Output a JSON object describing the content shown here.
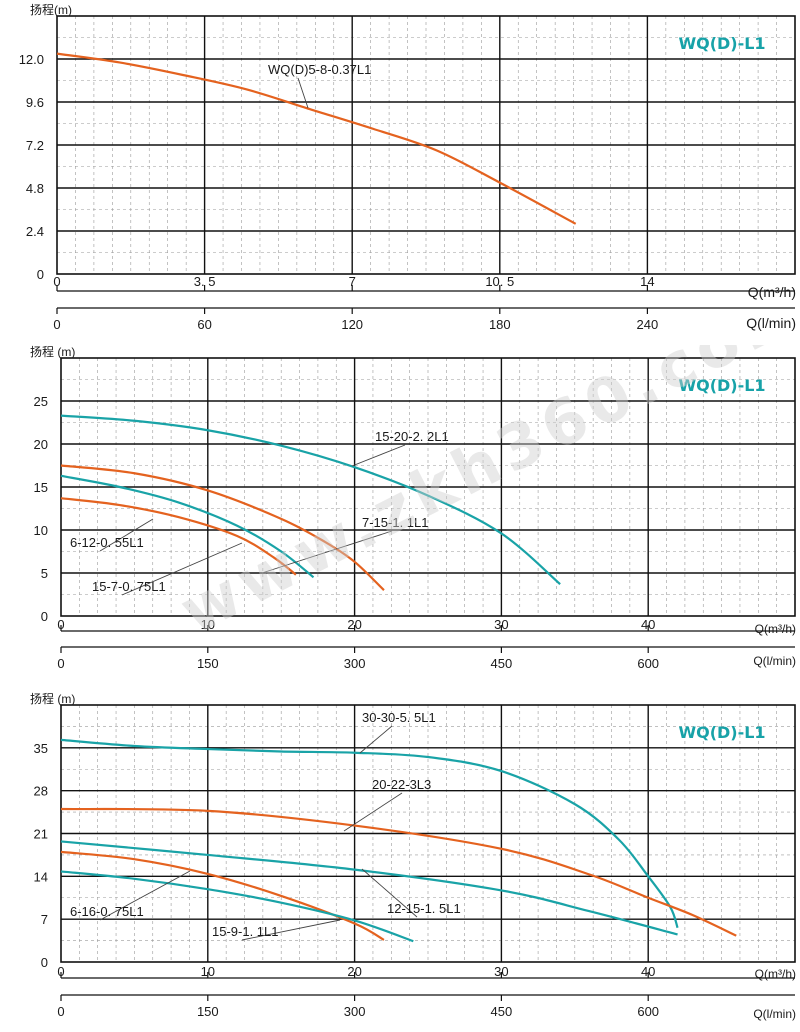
{
  "chart_data": [
    {
      "type": "line",
      "title": "WQ(D)-L1",
      "ylabel": "扬程(m)",
      "xlabel": "Q(m³/h)",
      "x2label": "Q(l/min)",
      "xlim": [
        0,
        17.5
      ],
      "ylim": [
        0,
        14.4
      ],
      "x_ticks": [
        "0",
        "3. 5",
        "7",
        "10. 5",
        "14"
      ],
      "x_tick_values": [
        0,
        3.5,
        7,
        10.5,
        14
      ],
      "x2_ticks": [
        "0",
        "60",
        "120",
        "180",
        "240"
      ],
      "y_ticks": [
        "0",
        "2.4",
        "4.8",
        "7.2",
        "9.6",
        "12.0"
      ],
      "grid": true,
      "series": [
        {
          "name": "WQ(D)5-8-0.37L1",
          "color": "#e4621f",
          "x": [
            0,
            1.5,
            3,
            4.5,
            6,
            7.5,
            9,
            10.5,
            12.3
          ],
          "y": [
            12.3,
            11.8,
            11.1,
            10.3,
            9.2,
            8.1,
            6.9,
            5.1,
            2.8
          ]
        }
      ],
      "annotations": [
        {
          "text": "WQ(D)5-8-0.37L1",
          "series": 0
        }
      ]
    },
    {
      "type": "line",
      "title": "WQ(D)-L1",
      "ylabel": "扬程 (m)",
      "xlabel": "Q(m³/h)",
      "x2label": "Q(l/min)",
      "xlim": [
        0,
        50
      ],
      "ylim": [
        0,
        30
      ],
      "x_ticks": [
        "0",
        "10",
        "20",
        "30",
        "40"
      ],
      "x_tick_values": [
        0,
        10,
        20,
        30,
        40
      ],
      "x2_ticks": [
        "0",
        "150",
        "300",
        "450",
        "600"
      ],
      "y_ticks": [
        "0",
        "5",
        "10",
        "15",
        "20",
        "25"
      ],
      "grid": true,
      "series": [
        {
          "name": "15-20-2. 2L1",
          "color": "#19a3a7",
          "x": [
            0,
            5,
            10,
            15,
            20,
            25,
            30,
            34
          ],
          "y": [
            23.3,
            22.7,
            21.6,
            19.8,
            17.3,
            14,
            9.6,
            3.7
          ]
        },
        {
          "name": "7-15-1. 1L1",
          "color": "#e4621f",
          "x": [
            0,
            5,
            10,
            15,
            18,
            20,
            22
          ],
          "y": [
            17.5,
            16.6,
            14.6,
            11.3,
            8.6,
            6.3,
            3
          ]
        },
        {
          "name": "6-12-0. 55L1",
          "color": "#19a3a7",
          "x": [
            0,
            4,
            8,
            12,
            15,
            17.2
          ],
          "y": [
            16.3,
            15,
            13.2,
            10.5,
            7.5,
            4.5
          ]
        },
        {
          "name": "15-7-0. 75L1",
          "color": "#e4621f",
          "x": [
            0,
            4,
            8,
            12,
            14.5,
            16
          ],
          "y": [
            13.7,
            12.9,
            11.5,
            9.3,
            6.8,
            4.8
          ]
        }
      ],
      "annotations": [
        {
          "text": "15-20-2. 2L1",
          "series": 0
        },
        {
          "text": "7-15-1. 1L1",
          "series": 1
        },
        {
          "text": "6-12-0. 55L1",
          "series": 2
        },
        {
          "text": "15-7-0. 75L1",
          "series": 3
        }
      ]
    },
    {
      "type": "line",
      "title": "WQ(D)-L1",
      "ylabel": "扬程 (m)",
      "xlabel": "Q(m³/h)",
      "x2label": "Q(l/min)",
      "xlim": [
        0,
        50
      ],
      "ylim": [
        0,
        42
      ],
      "x_ticks": [
        "0",
        "10",
        "20",
        "30",
        "40"
      ],
      "x_tick_values": [
        0,
        10,
        20,
        30,
        40
      ],
      "x2_ticks": [
        "0",
        "150",
        "300",
        "450",
        "600"
      ],
      "y_ticks": [
        "0",
        "7",
        "14",
        "21",
        "28",
        "35"
      ],
      "grid": true,
      "series": [
        {
          "name": "30-30-5. 5L1",
          "color": "#19a3a7",
          "x": [
            0,
            5,
            10,
            15,
            20,
            25,
            30,
            35,
            38,
            40,
            41.5,
            42
          ],
          "y": [
            36.3,
            35.3,
            34.8,
            34.4,
            34.2,
            33.5,
            31.2,
            25.8,
            20,
            14,
            9,
            5.6
          ]
        },
        {
          "name": "20-22-3L3",
          "color": "#e4621f",
          "x": [
            0,
            10,
            20,
            30,
            36,
            40,
            43,
            46
          ],
          "y": [
            25,
            24.7,
            22.3,
            18.5,
            14.3,
            10.5,
            7.7,
            4.3
          ]
        },
        {
          "name": "12-15-1. 5L1",
          "color": "#19a3a7",
          "x": [
            0,
            10,
            20,
            30,
            36,
            42
          ],
          "y": [
            19.7,
            17.5,
            15.1,
            11.7,
            8.3,
            4.5
          ]
        },
        {
          "name": "6-16-0. 75L1",
          "color": "#e4621f",
          "x": [
            0,
            5,
            10,
            15,
            20,
            22
          ],
          "y": [
            18,
            16.8,
            14.4,
            10.8,
            6.3,
            3.6
          ]
        },
        {
          "name": "15-9-1. 1L1",
          "color": "#19a3a7",
          "x": [
            0,
            5,
            10,
            15,
            20,
            24
          ],
          "y": [
            14.8,
            13.6,
            11.9,
            9.7,
            6.8,
            3.4
          ]
        }
      ],
      "annotations": [
        {
          "text": "30-30-5. 5L1",
          "series": 0
        },
        {
          "text": "20-22-3L3",
          "series": 1
        },
        {
          "text": "12-15-1. 5L1",
          "series": 2
        },
        {
          "text": "6-16-0. 75L1",
          "series": 3
        },
        {
          "text": "15-9-1. 1L1",
          "series": 4
        }
      ]
    }
  ],
  "watermark": "www.zkh360.com"
}
